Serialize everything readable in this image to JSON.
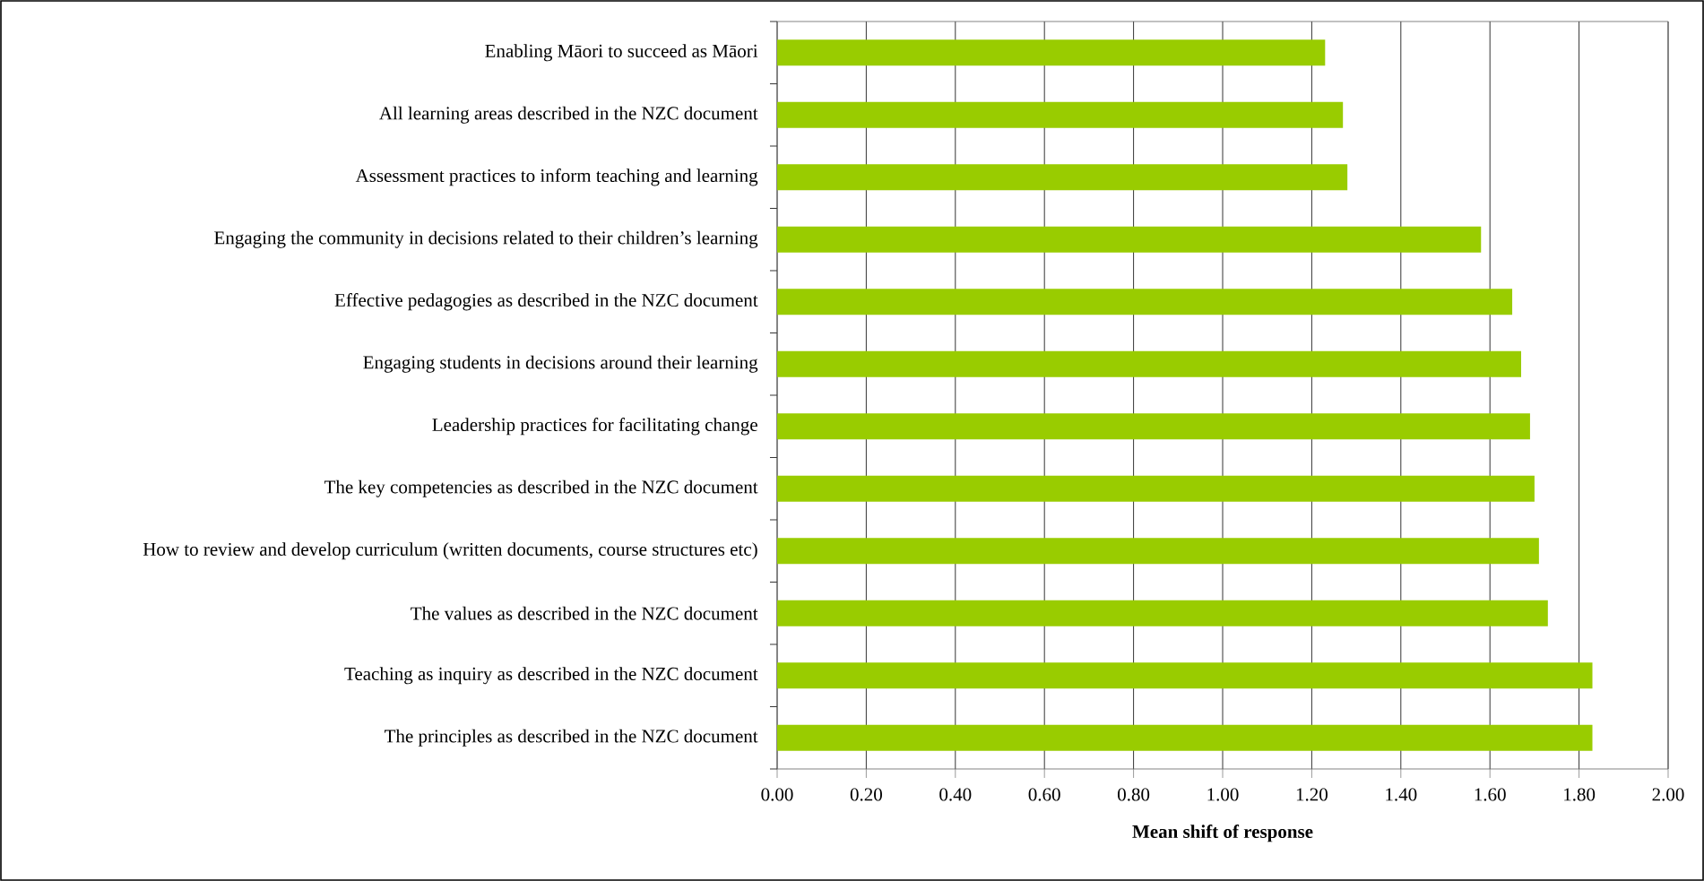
{
  "chart_data": {
    "type": "bar",
    "orientation": "horizontal",
    "categories": [
      "Enabling Māori to succeed as Māori",
      "All learning areas described in the NZC document",
      "Assessment practices to inform teaching and learning",
      "Engaging the community in decisions related to their children’s learning",
      "Effective pedagogies as described in the NZC document",
      "Engaging students in decisions around their learning",
      "Leadership practices for facilitating change",
      "The key competencies as described in the NZC document",
      "How to review and develop curriculum (written documents, course structures etc)",
      "The values as described in the NZC document",
      "Teaching as inquiry as described in the NZC document",
      "The principles as described in the NZC document"
    ],
    "values": [
      1.23,
      1.27,
      1.28,
      1.58,
      1.65,
      1.67,
      1.69,
      1.7,
      1.71,
      1.73,
      1.83,
      1.83
    ],
    "color": "#99cc00",
    "xlim": [
      0,
      2
    ],
    "xticks": [
      {
        "value": 0,
        "label": "0.00"
      },
      {
        "value": 0.2,
        "label": "0.20"
      },
      {
        "value": 0.4,
        "label": "0.40"
      },
      {
        "value": 0.6,
        "label": "0.60"
      },
      {
        "value": 0.8,
        "label": "0.80"
      },
      {
        "value": 1,
        "label": "1.00"
      },
      {
        "value": 1.2,
        "label": "1.20"
      },
      {
        "value": 1.4,
        "label": "1.40"
      },
      {
        "value": 1.6,
        "label": "1.60"
      },
      {
        "value": 1.8,
        "label": "1.80"
      },
      {
        "value": 2,
        "label": "2.00"
      }
    ],
    "xlabel": "Mean shift of response",
    "grid": "x"
  }
}
